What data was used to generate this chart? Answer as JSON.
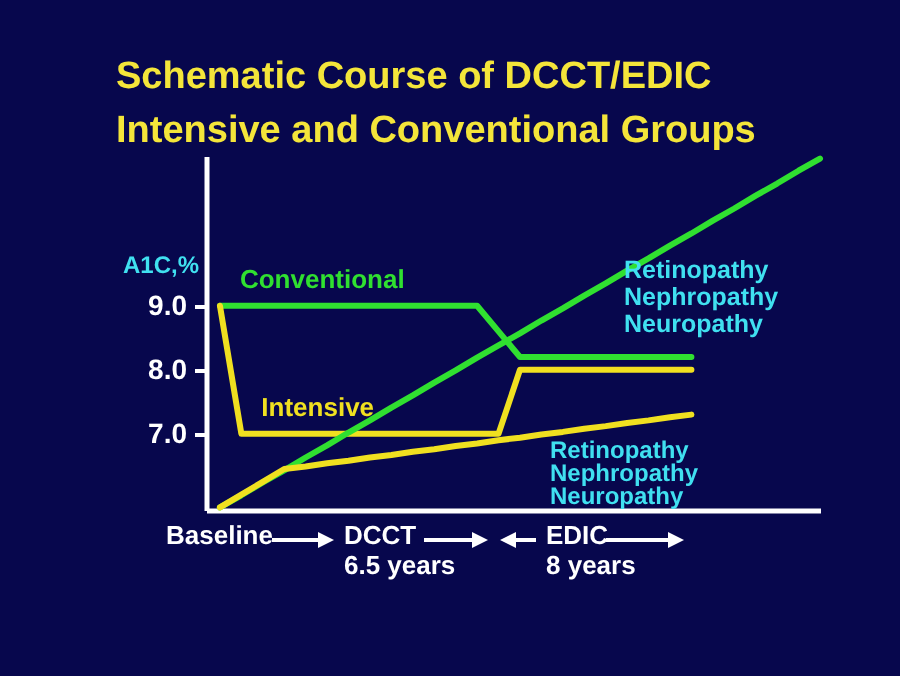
{
  "chart_data": {
    "type": "line",
    "title": "Schematic Course of DCCT/EDIC\nIntensive and Conventional Groups",
    "ylabel": "A1C,%",
    "categories": [
      null,
      null,
      null,
      null,
      null,
      null,
      null,
      null,
      null,
      null,
      null,
      null,
      null,
      null,
      null,
      null,
      null,
      null,
      null,
      null,
      null,
      null,
      null,
      null,
      null,
      null,
      null,
      null,
      null
    ],
    "ylim": [
      5.81,
      11.34
    ],
    "yticks": [
      {
        "value": 7,
        "label": "7.0"
      },
      {
        "value": 8,
        "label": "8.0"
      },
      {
        "value": 9,
        "label": "9.0"
      }
    ],
    "tick_labels": "y",
    "grid": false,
    "legend": false,
    "marker": "none",
    "line_style": "solid",
    "series": [
      {
        "name": "Conventional",
        "color": "#30e030",
        "values": [
          9.0,
          9.0,
          9.0,
          9.0,
          9.0,
          9.0,
          9.0,
          9.0,
          9.0,
          9.0,
          9.0,
          9.0,
          9.0,
          8.6,
          8.2,
          8.2,
          8.2,
          8.2,
          8.2,
          8.2,
          8.2,
          8.2,
          8.2,
          null,
          null,
          null,
          null,
          null,
          null
        ]
      },
      {
        "name": "Intensive",
        "color": "#f0e020",
        "values": [
          9.0,
          7.0,
          7.0,
          7.0,
          7.0,
          7.0,
          7.0,
          7.0,
          7.0,
          7.0,
          7.0,
          7.0,
          7.0,
          7.0,
          8.0,
          8.0,
          8.0,
          8.0,
          8.0,
          8.0,
          8.0,
          8.0,
          8.0,
          null,
          null,
          null,
          null,
          null,
          null
        ]
      },
      {
        "color": "#30e030",
        "values": [
          5.85,
          6.04,
          6.24,
          6.43,
          6.63,
          6.82,
          7.02,
          7.21,
          7.41,
          7.6,
          7.8,
          7.99,
          8.19,
          8.38,
          8.57,
          8.77,
          8.96,
          9.16,
          9.35,
          9.55,
          9.74,
          9.94,
          10.13,
          10.33,
          10.52,
          10.72,
          10.91,
          11.11,
          11.3
        ]
      },
      {
        "color": "#f0e020",
        "values": [
          5.85,
          6.05,
          6.25,
          6.45,
          6.49,
          6.54,
          6.58,
          6.63,
          6.67,
          6.72,
          6.76,
          6.81,
          6.85,
          6.9,
          6.94,
          6.99,
          7.03,
          7.08,
          7.12,
          7.17,
          7.21,
          7.26,
          7.3,
          null,
          null,
          null,
          null,
          null,
          null
        ]
      }
    ],
    "annotations": [
      "Retinopathy\nNephropathy\nNeuropathy",
      "Retinopathy\nNephropathy\nNeuropathy",
      "Baseline",
      "DCCT\n6.5 years",
      "EDIC\n8 years"
    ]
  }
}
